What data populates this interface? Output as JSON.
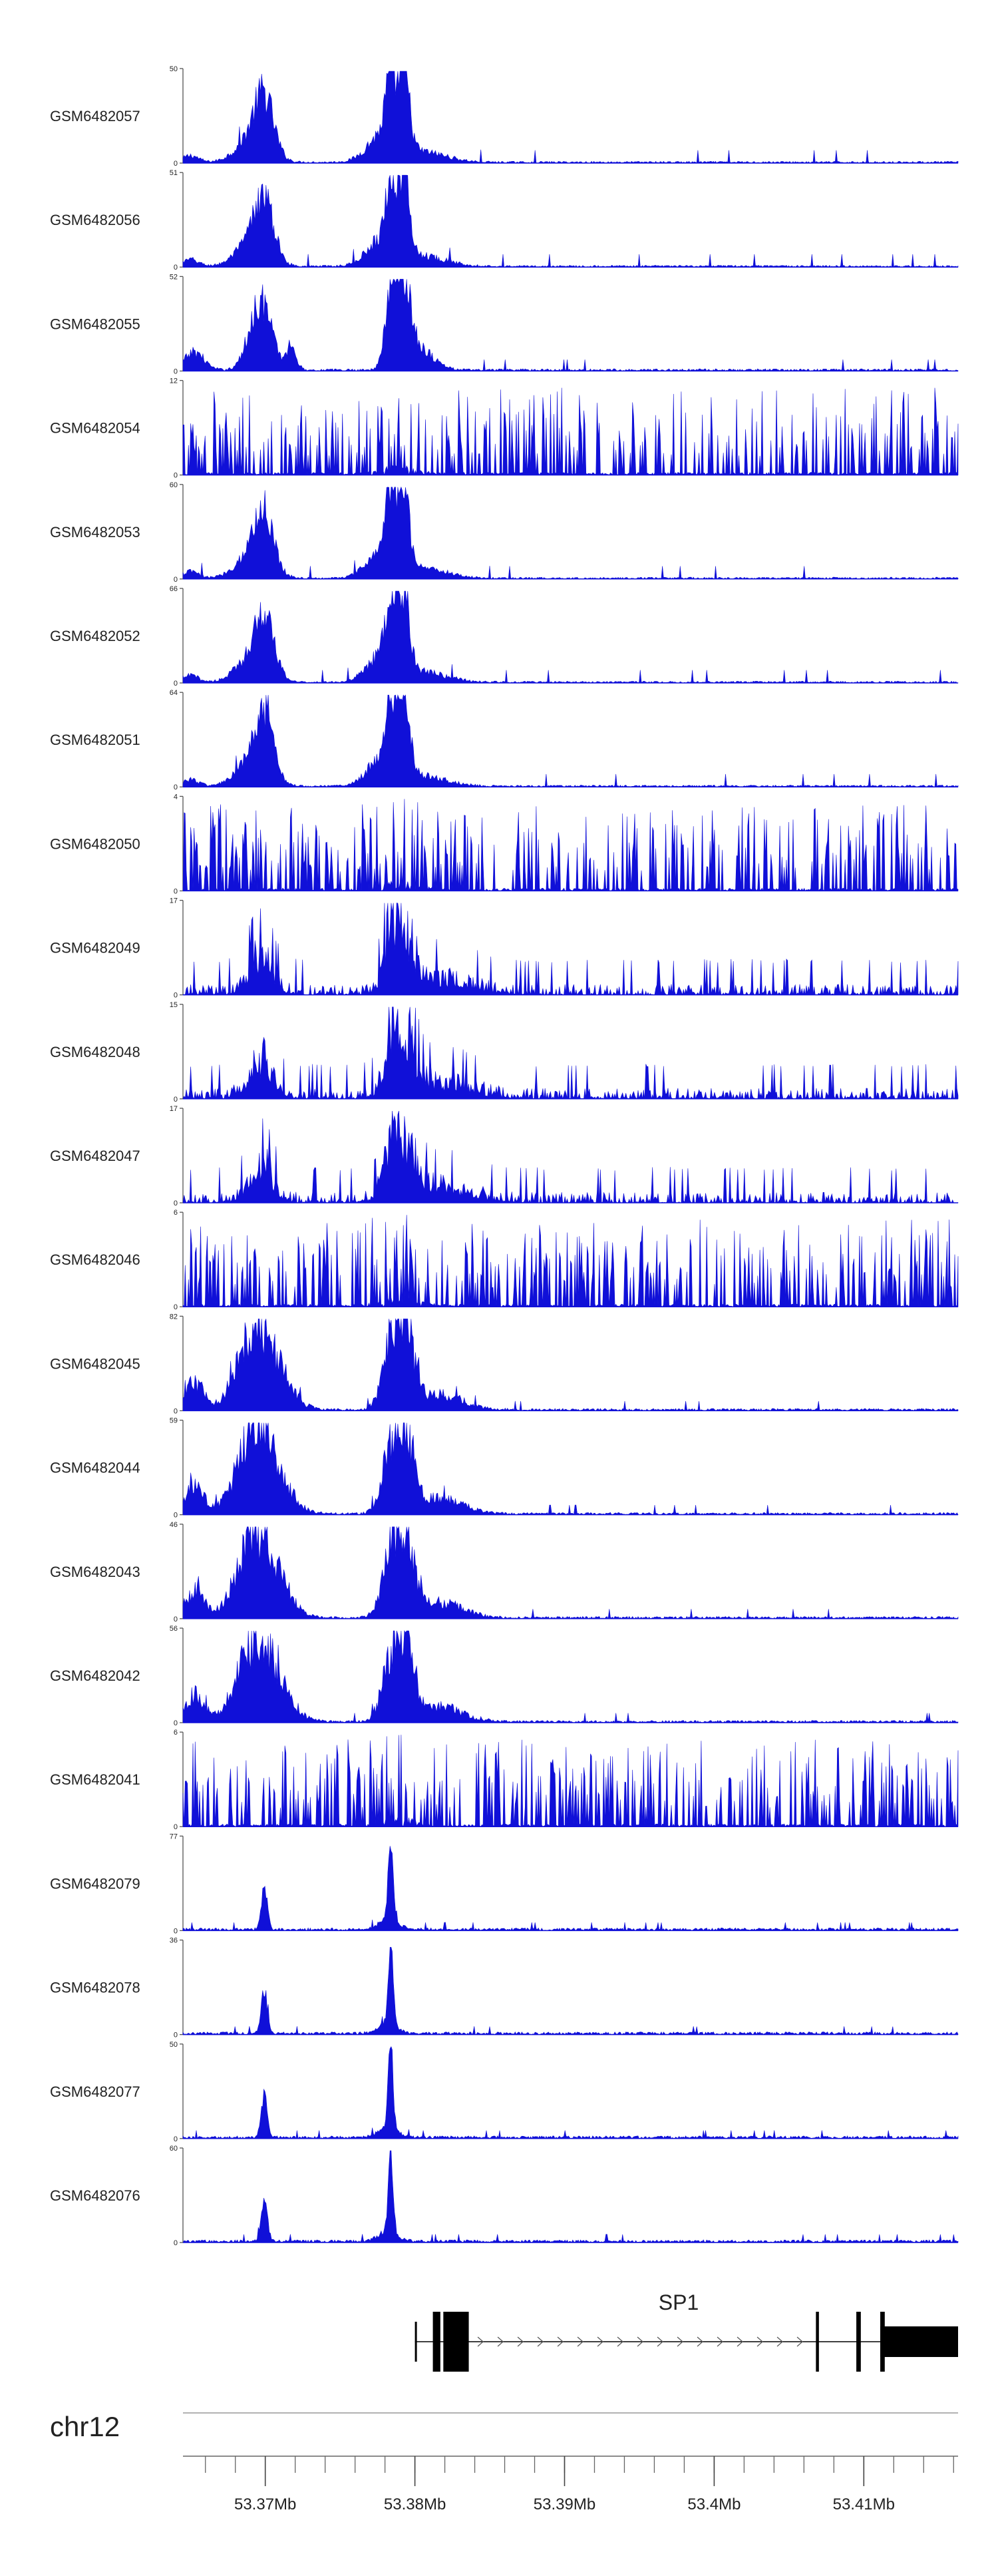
{
  "chart_data": {
    "type": "area",
    "title": "",
    "genome": {
      "chromosome": "chr12",
      "start_mb": 53.3645,
      "end_mb": 53.4163
    },
    "colors": {
      "signal": "#1010d8",
      "axis": "#555555",
      "gene": "#000000",
      "label": "#222222"
    },
    "tracks": [
      {
        "name": "GSM6482057",
        "ymax": 50,
        "ymin": 0
      },
      {
        "name": "GSM6482056",
        "ymax": 51,
        "ymin": 0
      },
      {
        "name": "GSM6482055",
        "ymax": 52,
        "ymin": 0
      },
      {
        "name": "GSM6482054",
        "ymax": 12,
        "ymin": 0
      },
      {
        "name": "GSM6482053",
        "ymax": 60,
        "ymin": 0
      },
      {
        "name": "GSM6482052",
        "ymax": 66,
        "ymin": 0
      },
      {
        "name": "GSM6482051",
        "ymax": 64,
        "ymin": 0
      },
      {
        "name": "GSM6482050",
        "ymax": 4,
        "ymin": 0
      },
      {
        "name": "GSM6482049",
        "ymax": 17,
        "ymin": 0
      },
      {
        "name": "GSM6482048",
        "ymax": 15,
        "ymin": 0
      },
      {
        "name": "GSM6482047",
        "ymax": 17,
        "ymin": 0
      },
      {
        "name": "GSM6482046",
        "ymax": 6,
        "ymin": 0
      },
      {
        "name": "GSM6482045",
        "ymax": 82,
        "ymin": 0
      },
      {
        "name": "GSM6482044",
        "ymax": 59,
        "ymin": 0
      },
      {
        "name": "GSM6482043",
        "ymax": 46,
        "ymin": 0
      },
      {
        "name": "GSM6482042",
        "ymax": 56,
        "ymin": 0
      },
      {
        "name": "GSM6482041",
        "ymax": 6,
        "ymin": 0
      },
      {
        "name": "GSM6482079",
        "ymax": 77,
        "ymin": 0
      },
      {
        "name": "GSM6482078",
        "ymax": 36,
        "ymin": 0
      },
      {
        "name": "GSM6482077",
        "ymax": 50,
        "ymin": 0
      },
      {
        "name": "GSM6482076",
        "ymax": 60,
        "ymin": 0
      }
    ],
    "gene": {
      "name": "SP1",
      "strand": "+",
      "start_mb": 53.38,
      "end_mb": 53.4163,
      "exons_mb": [
        [
          53.38,
          53.3801
        ],
        [
          53.3812,
          53.3817
        ],
        [
          53.3819,
          53.3836
        ],
        [
          53.4068,
          53.407
        ],
        [
          53.4095,
          53.4098
        ],
        [
          53.4111,
          53.4114
        ],
        [
          53.4111,
          53.4163
        ]
      ]
    },
    "x_ticks": [
      {
        "label": "53.37Mb",
        "mb": 53.37
      },
      {
        "label": "53.38Mb",
        "mb": 53.38
      },
      {
        "label": "53.39Mb",
        "mb": 53.39
      },
      {
        "label": "53.4Mb",
        "mb": 53.4
      },
      {
        "label": "53.41Mb",
        "mb": 53.41
      }
    ],
    "minor_tick_step_mb": 0.002
  }
}
